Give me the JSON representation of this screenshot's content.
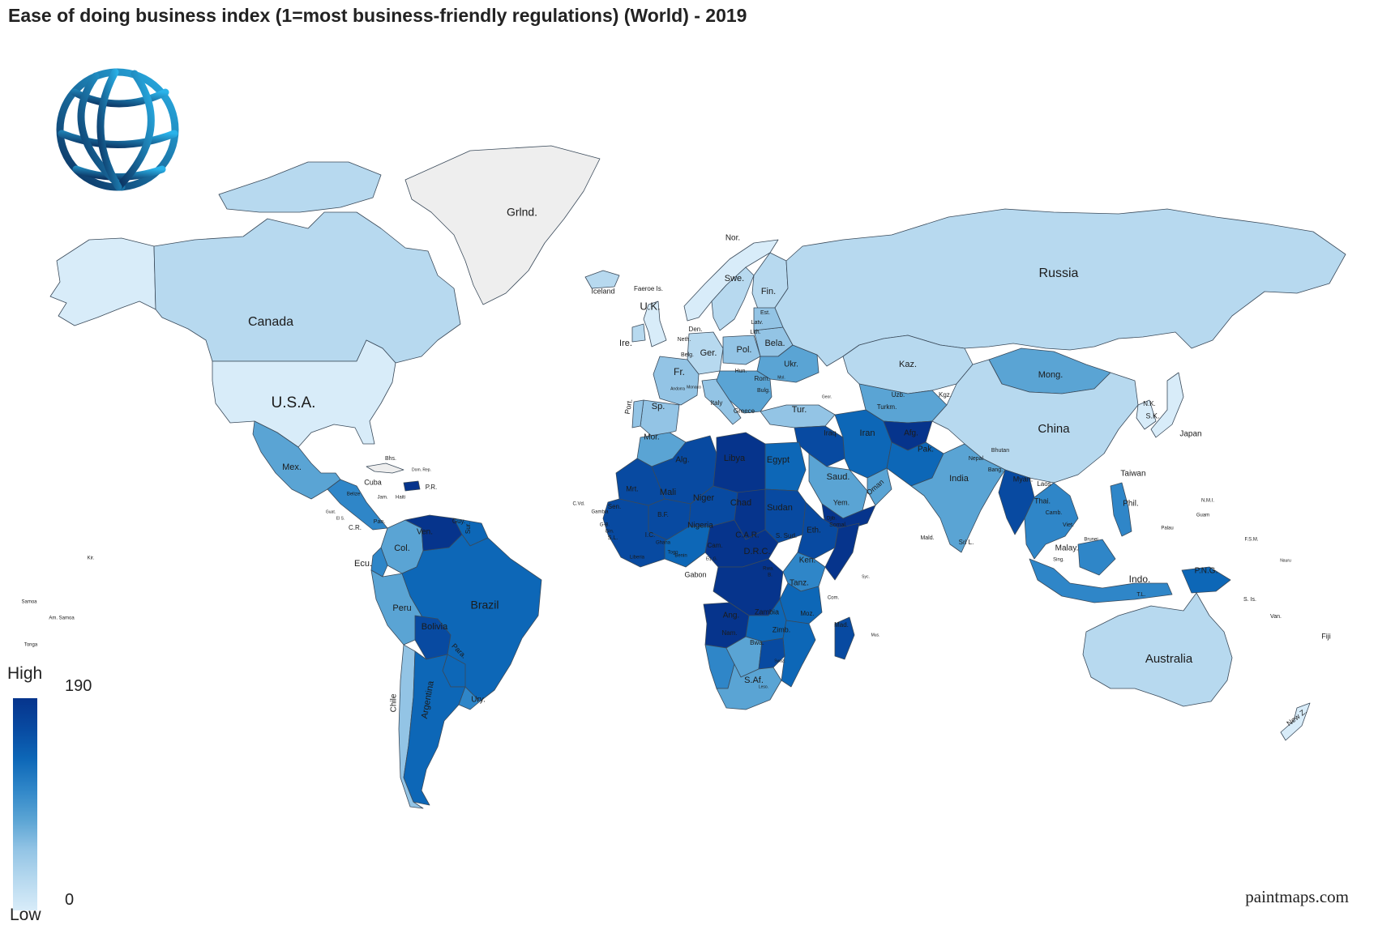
{
  "title": "Ease of doing business index (1=most business-friendly regulations) (World) - 2019",
  "credit": "paintmaps.com",
  "legend": {
    "high_label": "High",
    "low_label": "Low",
    "max_value": "190",
    "min_value": "0"
  },
  "colors": {
    "no_data": "#eeeeee",
    "scale": [
      "#d8ecf9",
      "#b7d9ef",
      "#93c4e5",
      "#5aa4d4",
      "#2f86c8",
      "#0d67b7",
      "#084aa1",
      "#06348c"
    ],
    "logo_gradient": [
      "#2ab3ea",
      "#0a2e5c"
    ]
  },
  "countries": [
    {
      "id": "greenland",
      "label": "Grlnd.",
      "level": -1
    },
    {
      "id": "canada",
      "label": "Canada",
      "level": 1
    },
    {
      "id": "usa",
      "label": "U.S.A.",
      "level": 0
    },
    {
      "id": "alaska",
      "label": "",
      "level": 0
    },
    {
      "id": "mexico",
      "label": "Mex.",
      "level": 3
    },
    {
      "id": "central-america",
      "label": "",
      "level": 4
    },
    {
      "id": "cuba",
      "label": "Cuba",
      "level": -1
    },
    {
      "id": "colombia",
      "label": "Col.",
      "level": 3
    },
    {
      "id": "venezuela",
      "label": "Ven.",
      "level": 7
    },
    {
      "id": "guianas",
      "label": "Sur.",
      "level": 5
    },
    {
      "id": "ecuador",
      "label": "Ecu.",
      "level": 4
    },
    {
      "id": "peru",
      "label": "Peru",
      "level": 3
    },
    {
      "id": "brazil",
      "label": "Brazil",
      "level": 5
    },
    {
      "id": "bolivia",
      "label": "Bolivia",
      "level": 6
    },
    {
      "id": "paraguay",
      "label": "Para.",
      "level": 5
    },
    {
      "id": "chile",
      "label": "Chile",
      "level": 2
    },
    {
      "id": "argentina",
      "label": "Argentina",
      "level": 5
    },
    {
      "id": "uruguay",
      "label": "Ury.",
      "level": 4
    },
    {
      "id": "iceland",
      "label": "Iceland",
      "level": 1
    },
    {
      "id": "uk",
      "label": "U.K.",
      "level": 0
    },
    {
      "id": "ireland",
      "label": "Ire.",
      "level": 1
    },
    {
      "id": "norway",
      "label": "Nor.",
      "level": 0
    },
    {
      "id": "sweden",
      "label": "Swe.",
      "level": 1
    },
    {
      "id": "finland",
      "label": "Fin.",
      "level": 1
    },
    {
      "id": "france",
      "label": "Fr.",
      "level": 2
    },
    {
      "id": "spain",
      "label": "Sp.",
      "level": 2
    },
    {
      "id": "portugal",
      "label": "Port.",
      "level": 2
    },
    {
      "id": "germany",
      "label": "Ger.",
      "level": 1
    },
    {
      "id": "italy",
      "label": "Italy",
      "level": 2
    },
    {
      "id": "poland",
      "label": "Pol.",
      "level": 2
    },
    {
      "id": "ukraine",
      "label": "Ukr.",
      "level": 3
    },
    {
      "id": "belarus",
      "label": "Bela.",
      "level": 2
    },
    {
      "id": "balkans",
      "label": "Rom.",
      "level": 3
    },
    {
      "id": "turkey",
      "label": "Tur.",
      "level": 2
    },
    {
      "id": "russia",
      "label": "Russia",
      "level": 1
    },
    {
      "id": "kazakhstan",
      "label": "Kaz.",
      "level": 1
    },
    {
      "id": "mongolia",
      "label": "Mong.",
      "level": 3
    },
    {
      "id": "china",
      "label": "China",
      "level": 1
    },
    {
      "id": "central-asia",
      "label": "Uzb.",
      "level": 3
    },
    {
      "id": "iran",
      "label": "Iran",
      "level": 5
    },
    {
      "id": "iraq-syria",
      "label": "Iraq",
      "level": 6
    },
    {
      "id": "afghanistan",
      "label": "Afg.",
      "level": 7
    },
    {
      "id": "pakistan",
      "label": "Pak.",
      "level": 5
    },
    {
      "id": "saudi",
      "label": "Saud.",
      "level": 3
    },
    {
      "id": "oman",
      "label": "Oman",
      "level": 3
    },
    {
      "id": "yemen",
      "label": "Yem.",
      "level": 7
    },
    {
      "id": "india",
      "label": "India",
      "level": 3
    },
    {
      "id": "myanmar",
      "label": "Myan.",
      "level": 6
    },
    {
      "id": "indochina",
      "label": "Thai.",
      "level": 4
    },
    {
      "id": "japan",
      "label": "Japan",
      "level": 0
    },
    {
      "id": "korea",
      "label": "S.K.",
      "level": 0
    },
    {
      "id": "philippines",
      "label": "Phil.",
      "level": 4
    },
    {
      "id": "indonesia",
      "label": "Indo.",
      "level": 4
    },
    {
      "id": "png",
      "label": "P.N.G.",
      "level": 5
    },
    {
      "id": "australia",
      "label": "Australia",
      "level": 1
    },
    {
      "id": "new-zealand",
      "label": "New Z.",
      "level": 0
    },
    {
      "id": "morocco",
      "label": "Mor.",
      "level": 3
    },
    {
      "id": "algeria",
      "label": "Alg.",
      "level": 6
    },
    {
      "id": "libya",
      "label": "Libya",
      "level": 7
    },
    {
      "id": "egypt",
      "label": "Egypt",
      "level": 5
    },
    {
      "id": "mauritania",
      "label": "Mrt.",
      "level": 6
    },
    {
      "id": "mali",
      "label": "Mali",
      "level": 6
    },
    {
      "id": "niger",
      "label": "Niger",
      "level": 6
    },
    {
      "id": "chad",
      "label": "Chad",
      "level": 7
    },
    {
      "id": "sudan",
      "label": "Sudan",
      "level": 6
    },
    {
      "id": "west-africa",
      "label": "Sen.",
      "level": 6
    },
    {
      "id": "nigeria",
      "label": "Nigeria",
      "level": 5
    },
    {
      "id": "ethiopia",
      "label": "Eth.",
      "level": 6
    },
    {
      "id": "somalia",
      "label": "Somal.",
      "level": 7
    },
    {
      "id": "central-africa",
      "label": "C.A.R.",
      "level": 7
    },
    {
      "id": "drc",
      "label": "D.R.C.",
      "level": 7
    },
    {
      "id": "kenya",
      "label": "Ken.",
      "level": 4
    },
    {
      "id": "tanzania",
      "label": "Tanz.",
      "level": 5
    },
    {
      "id": "angola",
      "label": "Ang.",
      "level": 7
    },
    {
      "id": "zambia",
      "label": "Zambia",
      "level": 5
    },
    {
      "id": "mozambique",
      "label": "Moz.",
      "level": 5
    },
    {
      "id": "namibia",
      "label": "Nam.",
      "level": 4
    },
    {
      "id": "botswana",
      "label": "Bwa.",
      "level": 3
    },
    {
      "id": "zimbabwe",
      "label": "Zimb.",
      "level": 6
    },
    {
      "id": "south-africa",
      "label": "S.Af.",
      "level": 3
    },
    {
      "id": "madagascar",
      "label": "Mad.",
      "level": 6
    }
  ],
  "extra_labels": [
    "Faeroe Is.",
    "Den.",
    "Neth.",
    "Belg.",
    "Andorra",
    "Monaco",
    "Greece",
    "Bulg.",
    "Hun.",
    "Lith.",
    "Latv.",
    "Est.",
    "Kgz.",
    "Turkm.",
    "Nepal",
    "Bhutan",
    "Bang.",
    "Laos",
    "Camb.",
    "Viet.",
    "Malay.",
    "Sing.",
    "Brunei",
    "Taiwan",
    "N.K.",
    "T.L.",
    "Sri L.",
    "Mald.",
    "N.M.I.",
    "Guam",
    "Palau",
    "F.S.M.",
    "Nauru",
    "S. Is.",
    "Van.",
    "Fiji",
    "Samoa",
    "Am. Samoa",
    "Tonga",
    "Kir.",
    "Bhs.",
    "Dom. Rep.",
    "P.R.",
    "Jam.",
    "Haiti",
    "Belize",
    "Guat.",
    "El S.",
    "C.R.",
    "Pan.",
    "Guy.",
    "C.Vd.",
    "Gambia",
    "G-B.",
    "Gin.",
    "S.L.",
    "Liberia",
    "I.C.",
    "Ghana",
    "Togo",
    "Benin",
    "B.F.",
    "Cam.",
    "Eq. G.",
    "Gabon",
    "S. Sud.",
    "Rwa.",
    "B.",
    "Djib.",
    "Com.",
    "Syc.",
    "Mus.",
    "Swaz.",
    "Leso.",
    "Geor.",
    "Mol."
  ]
}
